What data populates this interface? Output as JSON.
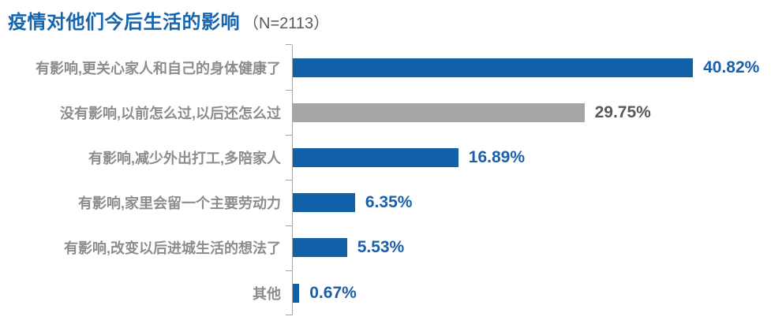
{
  "header": {
    "title": "疫情对他们今后生活的影响",
    "sample_size_label": "（N=2113）"
  },
  "colors": {
    "primary_blue": "#1161A8",
    "neutral_gray": "#A6A6A6",
    "title_blue": "#1565AE",
    "value_blue": "#1B5FAA",
    "value_gray": "#595959",
    "category_label_gray": "#8C8C8C",
    "axis_gray": "#A6A6A6"
  },
  "chart_data": {
    "type": "bar",
    "orientation": "horizontal",
    "title": "疫情对他们今后生活的影响（N=2113）",
    "sample_size": 2113,
    "unit": "%",
    "grid": false,
    "legend": false,
    "xlim": [
      0,
      45
    ],
    "categories": [
      "有影响,更关心家人和自己的身体健康了",
      "没有影响,以前怎么过,以后还怎么过",
      "有影响,减少外出打工,多陪家人",
      "有影响,家里会留一个主要劳动力",
      "有影响,改变以后进城生活的想法了",
      "其他"
    ],
    "values": [
      40.82,
      29.75,
      16.89,
      6.35,
      5.53,
      0.67
    ],
    "value_labels": [
      "40.82%",
      "29.75%",
      "16.89%",
      "6.35%",
      "5.53%",
      "0.67%"
    ],
    "bar_colors": [
      "#1161A8",
      "#A6A6A6",
      "#1161A8",
      "#1161A8",
      "#1161A8",
      "#1161A8"
    ],
    "value_label_colors": [
      "#1B5FAA",
      "#595959",
      "#1B5FAA",
      "#1B5FAA",
      "#1B5FAA",
      "#1B5FAA"
    ]
  }
}
